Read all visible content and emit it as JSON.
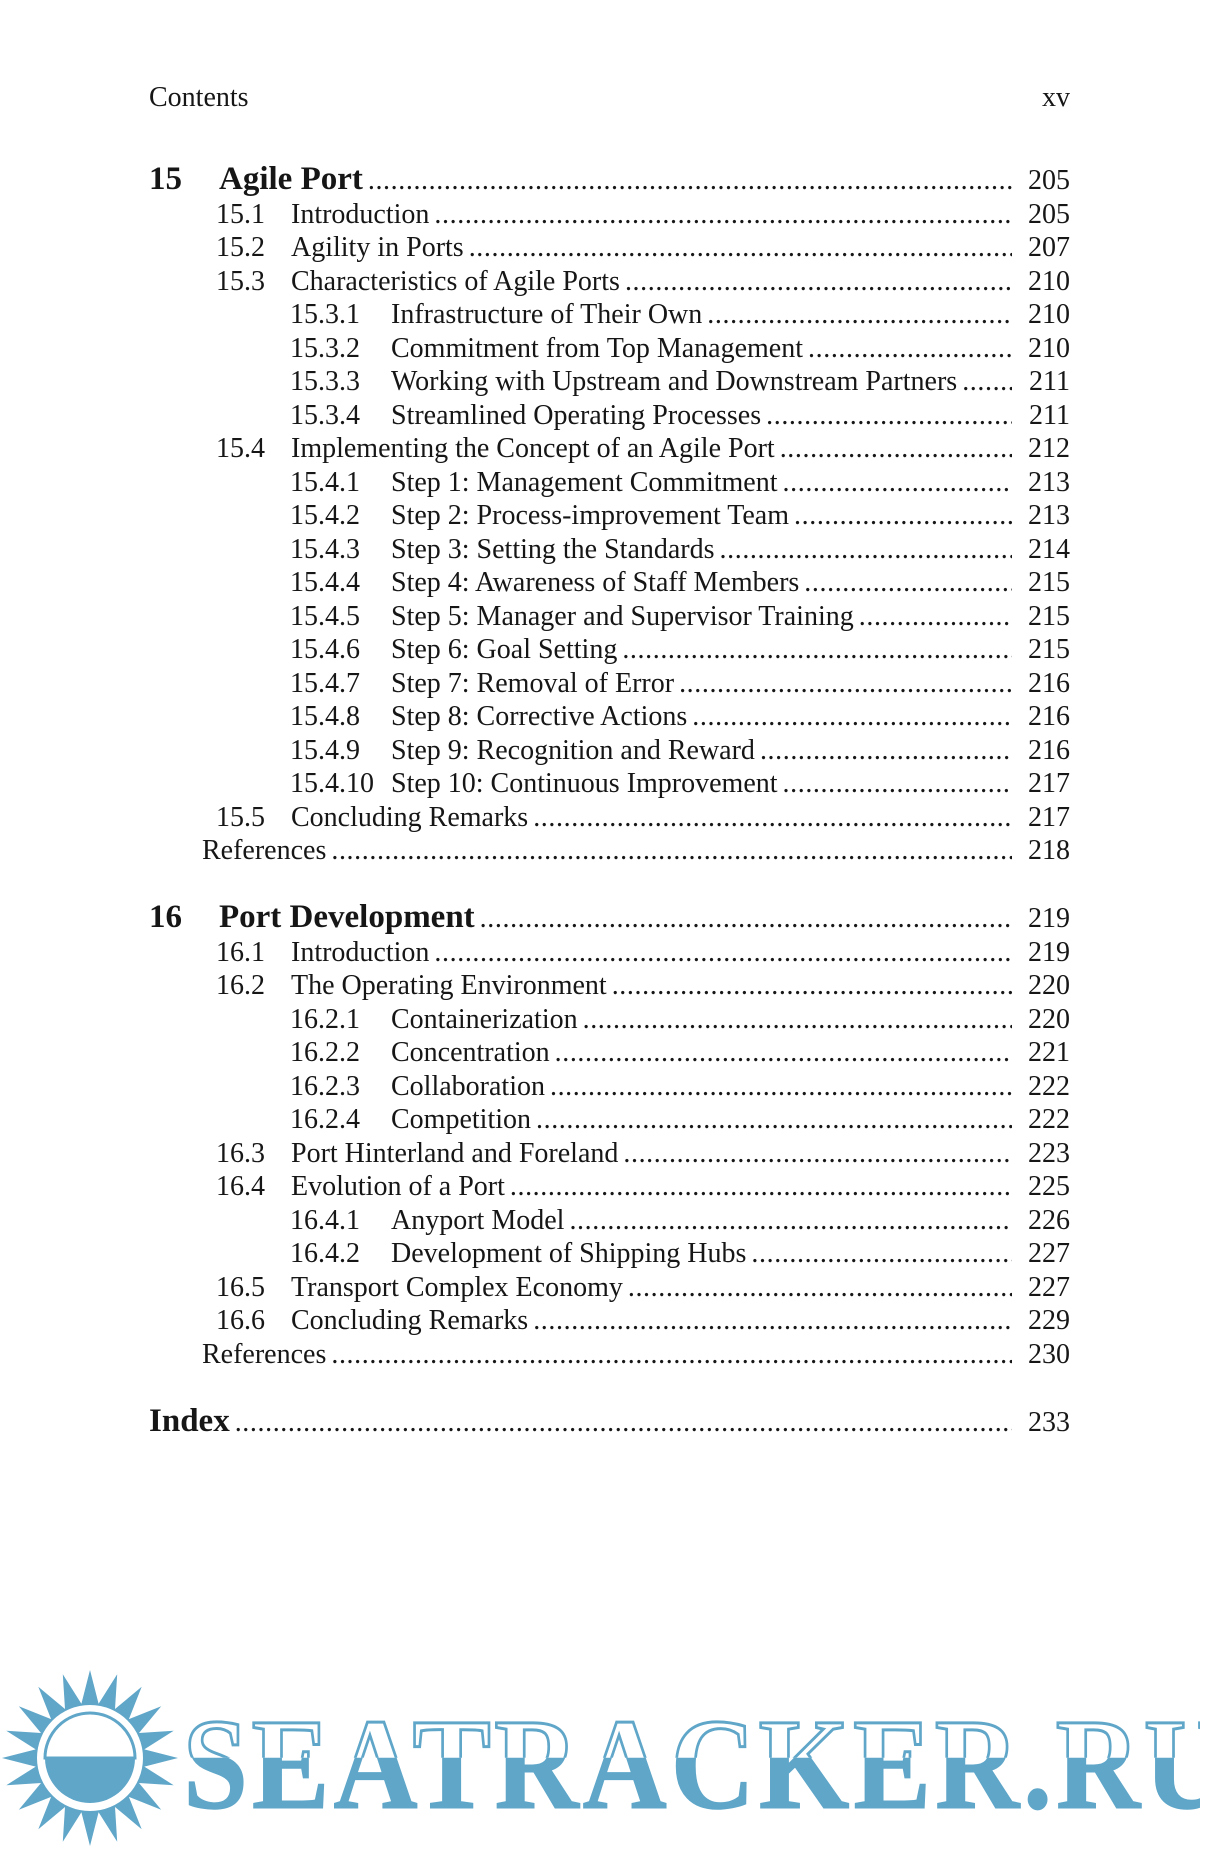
{
  "header": {
    "left": "Contents",
    "right": "xv"
  },
  "toc": {
    "chapters": [
      {
        "number": "15",
        "title": "Agile Port",
        "page": "205",
        "entries": [
          {
            "number": "15.1",
            "title": "Introduction",
            "page": "205",
            "level": 1
          },
          {
            "number": "15.2",
            "title": "Agility in Ports",
            "page": "207",
            "level": 1
          },
          {
            "number": "15.3",
            "title": "Characteristics of Agile Ports",
            "page": "210",
            "level": 1
          },
          {
            "number": "15.3.1",
            "title": "Infrastructure of Their Own",
            "page": "210",
            "level": 2
          },
          {
            "number": "15.3.2",
            "title": "Commitment from Top Management",
            "page": "210",
            "level": 2
          },
          {
            "number": "15.3.3",
            "title": "Working with Upstream and Downstream Partners",
            "page": "211",
            "level": 2
          },
          {
            "number": "15.3.4",
            "title": "Streamlined Operating Processes",
            "page": "211",
            "level": 2
          },
          {
            "number": "15.4",
            "title": "Implementing the Concept of an Agile Port",
            "page": "212",
            "level": 1
          },
          {
            "number": "15.4.1",
            "title": "Step 1: Management Commitment",
            "page": "213",
            "level": 2
          },
          {
            "number": "15.4.2",
            "title": "Step 2: Process-improvement Team",
            "page": "213",
            "level": 2
          },
          {
            "number": "15.4.3",
            "title": "Step 3: Setting the Standards",
            "page": "214",
            "level": 2
          },
          {
            "number": "15.4.4",
            "title": "Step 4: Awareness of Staff Members",
            "page": "215",
            "level": 2
          },
          {
            "number": "15.4.5",
            "title": "Step 5: Manager and Supervisor Training",
            "page": "215",
            "level": 2
          },
          {
            "number": "15.4.6",
            "title": "Step 6: Goal Setting",
            "page": "215",
            "level": 2
          },
          {
            "number": "15.4.7",
            "title": "Step 7: Removal of Error",
            "page": "216",
            "level": 2
          },
          {
            "number": "15.4.8",
            "title": "Step 8: Corrective Actions",
            "page": "216",
            "level": 2
          },
          {
            "number": "15.4.9",
            "title": "Step 9: Recognition and Reward",
            "page": "216",
            "level": 2
          },
          {
            "number": "15.4.10",
            "title": "Step 10: Continuous Improvement",
            "page": "217",
            "level": 2
          },
          {
            "number": "15.5",
            "title": "Concluding Remarks",
            "page": "217",
            "level": 1
          }
        ],
        "references": {
          "label": "References",
          "page": "218"
        }
      },
      {
        "number": "16",
        "title": "Port Development",
        "page": "219",
        "entries": [
          {
            "number": "16.1",
            "title": "Introduction",
            "page": "219",
            "level": 1
          },
          {
            "number": "16.2",
            "title": "The Operating Environment",
            "page": "220",
            "level": 1
          },
          {
            "number": "16.2.1",
            "title": "Containerization",
            "page": "220",
            "level": 2
          },
          {
            "number": "16.2.2",
            "title": "Concentration",
            "page": "221",
            "level": 2
          },
          {
            "number": "16.2.3",
            "title": "Collaboration",
            "page": "222",
            "level": 2
          },
          {
            "number": "16.2.4",
            "title": "Competition",
            "page": "222",
            "level": 2
          },
          {
            "number": "16.3",
            "title": "Port Hinterland and Foreland",
            "page": "223",
            "level": 1
          },
          {
            "number": "16.4",
            "title": "Evolution of a Port",
            "page": "225",
            "level": 1
          },
          {
            "number": "16.4.1",
            "title": "Anyport Model",
            "page": "226",
            "level": 2
          },
          {
            "number": "16.4.2",
            "title": "Development of Shipping Hubs",
            "page": "227",
            "level": 2
          },
          {
            "number": "16.5",
            "title": "Transport Complex Economy",
            "page": "227",
            "level": 1
          },
          {
            "number": "16.6",
            "title": "Concluding Remarks",
            "page": "229",
            "level": 1
          }
        ],
        "references": {
          "label": "References",
          "page": "230"
        }
      }
    ],
    "index": {
      "label": "Index",
      "page": "233"
    }
  },
  "watermark": {
    "text": "SEATRACKER.RU",
    "color": "#5fa6c9",
    "icon": "sunburst-icon"
  }
}
